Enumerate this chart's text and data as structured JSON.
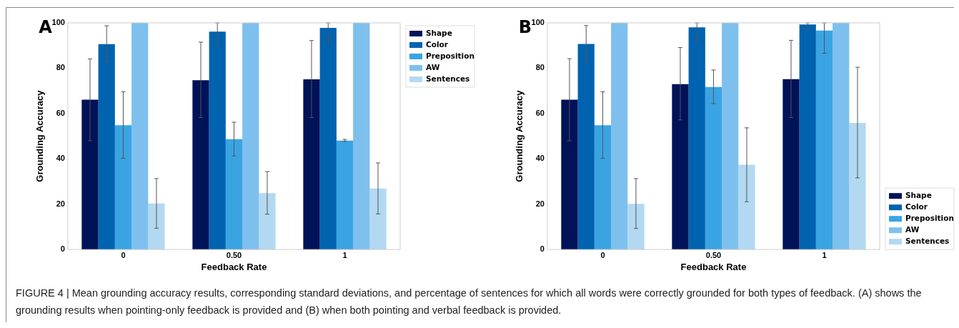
{
  "chart_data": [
    {
      "type": "bar",
      "annotations": [
        "A",
        "FIGURE 4 | Mean grounding accuracy results, corresponding standard deviations, and percentage of sentences for which all words were correctly grounded for both types of feedback. (A) shows the grounding results when pointing-only feedback is provided and (B) when both pointing and verbal feedback is provided."
      ],
      "xlabel": "Feedback Rate",
      "ylabel": "Grounding Accuracy",
      "categories": [
        "0",
        "0.50",
        "1"
      ],
      "series": [
        {
          "name": "Shape",
          "color": "#001258",
          "values": [
            66.1,
            74.7,
            75.1
          ],
          "errors": [
            [
              48.0,
              84.1
            ],
            [
              58.2,
              91.5
            ],
            [
              58.2,
              92.2
            ]
          ]
        },
        {
          "name": "Color",
          "color": "#0063b0",
          "values": [
            90.6,
            96.1,
            97.8
          ],
          "errors": [
            [
              82.8,
              98.7
            ],
            [
              89.9,
              100
            ],
            [
              91.9,
              100
            ]
          ]
        },
        {
          "name": "Preposition",
          "color": "#3aa4e3",
          "values": [
            54.8,
            48.7,
            48.1
          ],
          "errors": [
            [
              40.2,
              69.6
            ],
            [
              41.3,
              56.2
            ],
            [
              47.7,
              48.6
            ]
          ]
        },
        {
          "name": "AW",
          "color": "#7ec0ed",
          "values": [
            100,
            100,
            100
          ]
        },
        {
          "name": "Sentences",
          "color": "#b3d9f2",
          "values": [
            20.3,
            24.9,
            26.9
          ],
          "errors": [
            [
              9.4,
              31.3
            ],
            [
              15.6,
              34.4
            ],
            [
              15.7,
              38.2
            ]
          ]
        }
      ],
      "ylim": [
        0,
        100
      ],
      "yticks": [
        0,
        20,
        40,
        60,
        80,
        100
      ],
      "grid": false,
      "legend": "top right"
    },
    {
      "type": "bar",
      "annotations": [
        "B"
      ],
      "xlabel": "Feedback Rate",
      "ylabel": "Grounding Accuracy",
      "categories": [
        "0",
        "0.50",
        "1"
      ],
      "series": [
        {
          "name": "Shape",
          "color": "#001258",
          "values": [
            66.1,
            73.0,
            75.2
          ],
          "errors": [
            [
              48.0,
              84.2
            ],
            [
              57.2,
              89.1
            ],
            [
              58.2,
              92.3
            ]
          ]
        },
        {
          "name": "Color",
          "color": "#0063b0",
          "values": [
            90.7,
            98.0,
            99.3
          ],
          "errors": [
            [
              82.7,
              98.8
            ],
            [
              92.0,
              100
            ],
            [
              97.3,
              100
            ]
          ]
        },
        {
          "name": "Preposition",
          "color": "#3aa4e3",
          "values": [
            54.8,
            71.7,
            96.6
          ],
          "errors": [
            [
              40.2,
              69.6
            ],
            [
              64.4,
              79.2
            ],
            [
              86.6,
              100
            ]
          ]
        },
        {
          "name": "AW",
          "color": "#7ec0ed",
          "values": [
            100,
            100,
            100
          ]
        },
        {
          "name": "Sentences",
          "color": "#b3d9f2",
          "values": [
            20.2,
            37.4,
            55.9
          ],
          "errors": [
            [
              9.3,
              31.3
            ],
            [
              21.1,
              53.7
            ],
            [
              31.6,
              80.4
            ]
          ]
        }
      ],
      "ylim": [
        0,
        100
      ],
      "yticks": [
        0,
        20,
        40,
        60,
        80,
        100
      ],
      "grid": false,
      "legend": "bottom right"
    }
  ]
}
